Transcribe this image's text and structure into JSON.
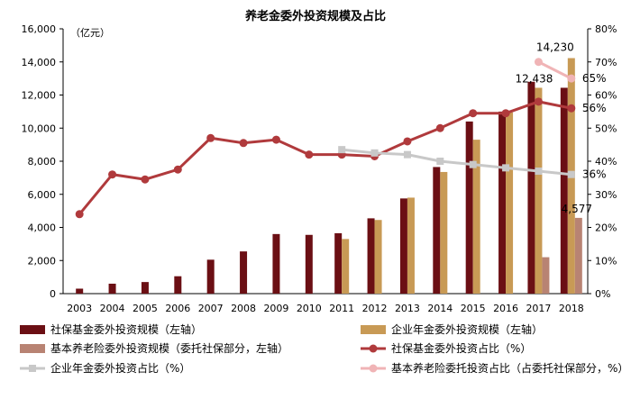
{
  "chart_data": {
    "type": "bar",
    "title": "养老金委外投资规模及占比",
    "left_axis": {
      "unit_label": "（亿元）",
      "ylim": [
        0,
        16000
      ],
      "ticks": [
        "0",
        "2,000",
        "4,000",
        "6,000",
        "8,000",
        "10,000",
        "12,000",
        "14,000",
        "16,000"
      ]
    },
    "right_axis": {
      "ylim": [
        0,
        80
      ],
      "ticks": [
        "0%",
        "10%",
        "20%",
        "30%",
        "40%",
        "50%",
        "60%",
        "70%",
        "80%"
      ]
    },
    "categories": [
      "2003",
      "2004",
      "2005",
      "2006",
      "2007",
      "2008",
      "2009",
      "2010",
      "2011",
      "2012",
      "2013",
      "2014",
      "2015",
      "2016",
      "2017",
      "2018"
    ],
    "bar_series": [
      {
        "name": "社保基金委外投资规模（左轴）",
        "color": "#6b0f14",
        "values": [
          300,
          600,
          700,
          1050,
          2050,
          2550,
          3600,
          3550,
          3650,
          4550,
          5750,
          7650,
          10400,
          11000,
          12800,
          12438
        ]
      },
      {
        "name": "企业年金委外投资规模（左轴）",
        "color": "#c89a55",
        "values": [
          null,
          null,
          null,
          null,
          null,
          null,
          null,
          null,
          3300,
          4450,
          5800,
          7350,
          9300,
          10950,
          12438,
          14230
        ]
      },
      {
        "name": "基本养老险委外投资规模（委托社保部分，左轴）",
        "color": "#b88373",
        "values": [
          null,
          null,
          null,
          null,
          null,
          null,
          null,
          null,
          null,
          null,
          null,
          null,
          null,
          null,
          2200,
          4577
        ]
      }
    ],
    "line_series": [
      {
        "name": "社保基金委外投资占比（%）",
        "color": "#b03a3c",
        "values": [
          24,
          36,
          34.5,
          37.5,
          47,
          45.5,
          46.5,
          42,
          42,
          41.5,
          46,
          50,
          54.5,
          54.5,
          58,
          56
        ]
      },
      {
        "name": "企业年金委外投资占比（%）",
        "color": "#c8c8c8",
        "values": [
          null,
          null,
          null,
          null,
          null,
          null,
          null,
          null,
          43.5,
          42.5,
          42,
          40,
          39,
          38,
          37,
          36
        ]
      },
      {
        "name": "基本养老险委托投资占比（占委托社保部分，%）",
        "color": "#f0b4b6",
        "values": [
          null,
          null,
          null,
          null,
          null,
          null,
          null,
          null,
          null,
          null,
          null,
          null,
          null,
          null,
          70,
          65
        ]
      }
    ],
    "annotations": [
      "12,438",
      "14,230",
      "4,577",
      "65%",
      "56%",
      "36%"
    ]
  }
}
